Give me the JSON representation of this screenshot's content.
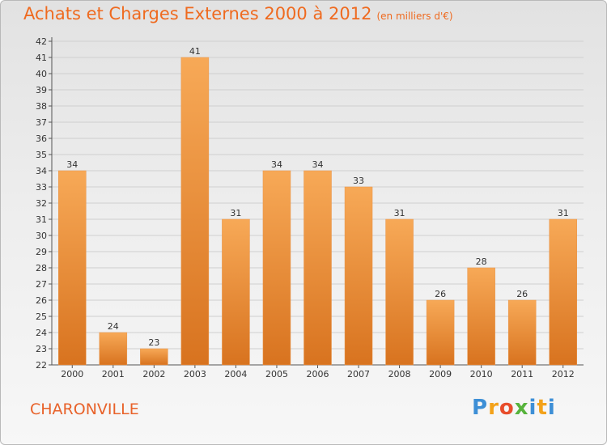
{
  "header": {
    "title": "Achats et Charges Externes 2000 à 2012",
    "subtitle": "(en milliers d'€)"
  },
  "footer": {
    "town": "CHARONVILLE",
    "logo_letters": [
      "P",
      "r",
      "o",
      "x",
      "i",
      "t",
      "i"
    ]
  },
  "colors": {
    "title": "#ef6a1f",
    "bar_light": "#f7a957",
    "bar_dark": "#d8731f"
  },
  "chart_data": {
    "type": "bar",
    "title": "Achats et Charges Externes 2000 à 2012",
    "subtitle": "(en milliers d'€)",
    "categories": [
      "2000",
      "2001",
      "2002",
      "2003",
      "2004",
      "2005",
      "2006",
      "2007",
      "2008",
      "2009",
      "2010",
      "2011",
      "2012"
    ],
    "values": [
      34,
      24,
      23,
      41,
      31,
      34,
      34,
      33,
      31,
      26,
      28,
      26,
      31
    ],
    "ylim": [
      22,
      42
    ],
    "yticks": [
      22,
      23,
      24,
      25,
      26,
      27,
      28,
      29,
      30,
      31,
      32,
      33,
      34,
      35,
      36,
      37,
      38,
      39,
      40,
      41,
      42
    ],
    "grid": true,
    "xlabel": "",
    "ylabel": ""
  }
}
